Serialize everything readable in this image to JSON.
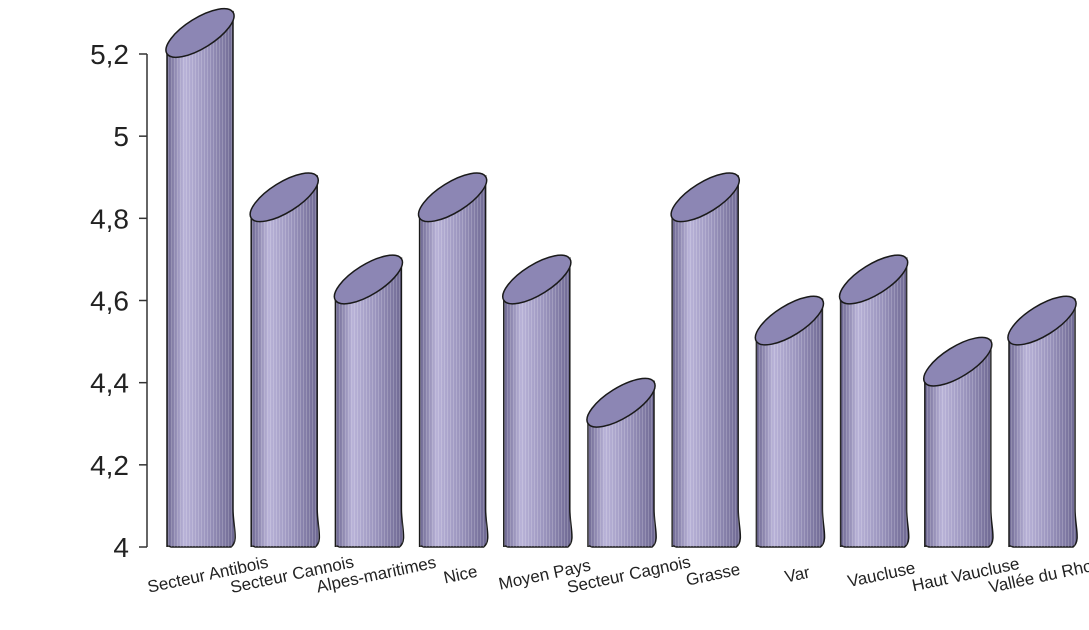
{
  "chart_data": {
    "type": "bar",
    "style": "3d-cylinder",
    "categories": [
      "Secteur Antibois",
      "Secteur Cannois",
      "Alpes-maritimes",
      "Nice",
      "Moyen Pays",
      "Secteur Cagnois",
      "Grasse",
      "Var",
      "Vaucluse",
      "Haut Vaucluse",
      "Vallée du Rhone"
    ],
    "values": [
      5.2,
      4.8,
      4.6,
      4.8,
      4.6,
      4.3,
      4.8,
      4.5,
      4.6,
      4.4,
      4.5
    ],
    "ylim": [
      4,
      5.2
    ],
    "yticks": [
      "4",
      "4,2",
      "4,4",
      "4,6",
      "4,8",
      "5",
      "5,2"
    ],
    "ytick_values": [
      4,
      4.2,
      4.4,
      4.6,
      4.8,
      5,
      5.2
    ],
    "title": "",
    "xlabel": "",
    "ylabel": "",
    "grid": false,
    "legend": "none",
    "colors": {
      "bar_fill": "#9a94bd",
      "bar_dark": "#6c6690",
      "bar_light": "#b9b3d8",
      "bar_top": "#8c86b4",
      "outline": "#1a1a1a",
      "axis": "#333333"
    }
  }
}
